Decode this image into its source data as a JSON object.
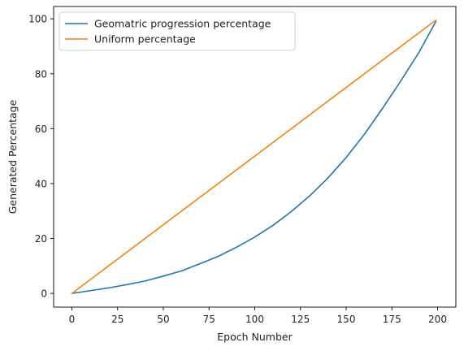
{
  "chart_data": {
    "type": "line",
    "xlabel": "Epoch Number",
    "ylabel": "Generated Percentage",
    "xlim": [
      -10,
      210
    ],
    "ylim": [
      -5,
      104.5
    ],
    "xticks": [
      0,
      25,
      50,
      75,
      100,
      125,
      150,
      175,
      200
    ],
    "yticks": [
      0,
      20,
      40,
      60,
      80,
      100
    ],
    "xtick_labels": [
      "0",
      "25",
      "50",
      "75",
      "100",
      "125",
      "150",
      "175",
      "200"
    ],
    "ytick_labels": [
      "0",
      "20",
      "40",
      "60",
      "80",
      "100"
    ],
    "grid": false,
    "legend_position": "upper-left",
    "series": [
      {
        "name": "Geomatric progression percentage",
        "color": "#1f77b4",
        "x": [
          0,
          10,
          20,
          30,
          40,
          50,
          60,
          70,
          80,
          90,
          100,
          110,
          120,
          130,
          140,
          150,
          160,
          170,
          180,
          190,
          199
        ],
        "y": [
          0.0,
          1.0,
          2.0,
          3.2,
          4.5,
          6.3,
          8.2,
          10.8,
          13.5,
          16.8,
          20.5,
          24.8,
          29.8,
          35.5,
          42.0,
          49.5,
          58.0,
          67.5,
          77.5,
          88.0,
          99.0
        ]
      },
      {
        "name": "Uniform percentage",
        "color": "#ff7f0e",
        "x": [
          0,
          199
        ],
        "y": [
          0.0,
          99.5
        ]
      }
    ]
  }
}
